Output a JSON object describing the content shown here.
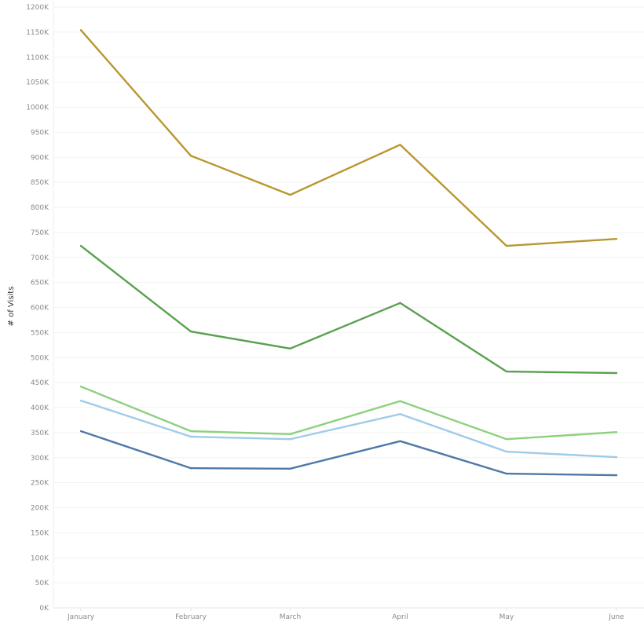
{
  "chart_data": {
    "type": "line",
    "title": "",
    "xlabel": "",
    "ylabel": "# of Visits",
    "ylim": [
      0,
      1200
    ],
    "y_tick_step": 50,
    "y_tick_suffix": "K",
    "grid": true,
    "legend": "none",
    "categories": [
      "January",
      "February",
      "March",
      "April",
      "May",
      "June"
    ],
    "series": [
      {
        "color": "#b9972e",
        "values": [
          1154,
          903,
          825,
          925,
          723,
          737
        ]
      },
      {
        "color": "#59a14f",
        "values": [
          723,
          552,
          518,
          609,
          472,
          469
        ]
      },
      {
        "color": "#8cd17d",
        "values": [
          442,
          353,
          347,
          413,
          337,
          351
        ]
      },
      {
        "color": "#a0cbe8",
        "values": [
          414,
          342,
          337,
          387,
          312,
          301
        ]
      },
      {
        "color": "#4e79a7",
        "values": [
          353,
          279,
          278,
          333,
          268,
          265
        ]
      }
    ]
  }
}
